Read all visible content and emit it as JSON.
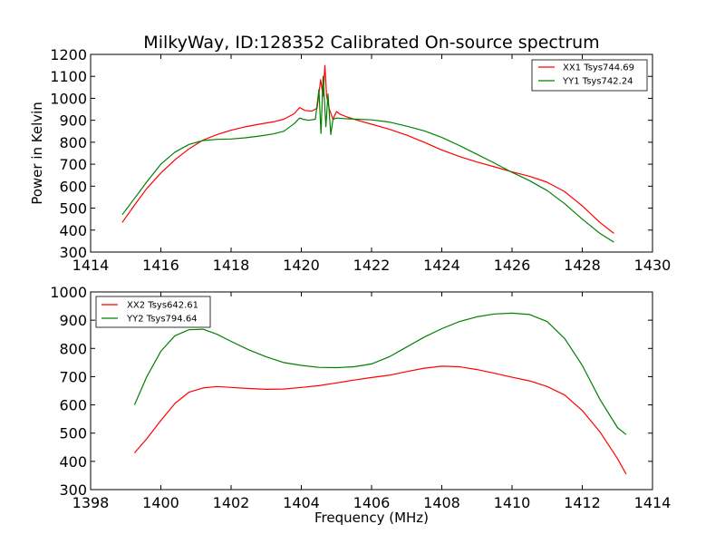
{
  "chart_data": [
    {
      "type": "line",
      "title": "MilkyWay, ID:128352 Calibrated On-source spectrum",
      "xlabel": "",
      "ylabel": "Power in Kelvin",
      "xlim": [
        1414,
        1430
      ],
      "ylim": [
        300,
        1200
      ],
      "xticks": [
        1414,
        1416,
        1418,
        1420,
        1422,
        1424,
        1426,
        1428,
        1430
      ],
      "yticks": [
        300,
        400,
        500,
        600,
        700,
        800,
        900,
        1000,
        1100,
        1200
      ],
      "grid": false,
      "legend_position": "top-right",
      "series": [
        {
          "name": "XX1 Tsys744.69",
          "color": "#ff0000",
          "x": [
            1414.9,
            1415.3,
            1415.6,
            1416.0,
            1416.4,
            1416.8,
            1417.2,
            1417.6,
            1418.0,
            1418.4,
            1418.8,
            1419.2,
            1419.5,
            1419.8,
            1419.95,
            1420.1,
            1420.3,
            1420.45,
            1420.55,
            1420.62,
            1420.67,
            1420.72,
            1420.8,
            1420.9,
            1421.0,
            1421.1,
            1421.3,
            1421.6,
            1422.0,
            1422.5,
            1423.0,
            1423.5,
            1424.0,
            1424.5,
            1425.0,
            1425.5,
            1426.0,
            1426.5,
            1427.0,
            1427.5,
            1428.0,
            1428.5,
            1428.9
          ],
          "y": [
            435,
            525,
            590,
            660,
            720,
            770,
            810,
            835,
            855,
            870,
            882,
            893,
            905,
            930,
            958,
            945,
            942,
            955,
            1085,
            1010,
            1150,
            1010,
            950,
            905,
            940,
            928,
            915,
            900,
            882,
            860,
            832,
            800,
            765,
            735,
            710,
            688,
            665,
            645,
            618,
            575,
            510,
            435,
            385
          ]
        },
        {
          "name": "YY1 Tsys742.24",
          "color": "#008000",
          "x": [
            1414.9,
            1415.3,
            1415.6,
            1416.0,
            1416.4,
            1416.8,
            1417.2,
            1417.6,
            1418.0,
            1418.4,
            1418.8,
            1419.2,
            1419.5,
            1419.8,
            1419.95,
            1420.05,
            1420.2,
            1420.4,
            1420.5,
            1420.56,
            1420.62,
            1420.7,
            1420.76,
            1420.84,
            1420.9,
            1421.0,
            1421.3,
            1421.6,
            1422.0,
            1422.5,
            1423.0,
            1423.5,
            1424.0,
            1424.5,
            1425.0,
            1425.5,
            1426.0,
            1426.5,
            1427.0,
            1427.5,
            1428.0,
            1428.5,
            1428.9
          ],
          "y": [
            470,
            555,
            620,
            700,
            755,
            790,
            808,
            813,
            815,
            820,
            828,
            838,
            850,
            885,
            910,
            905,
            900,
            905,
            1040,
            840,
            1100,
            870,
            1020,
            835,
            905,
            910,
            907,
            905,
            902,
            892,
            873,
            852,
            822,
            785,
            745,
            705,
            663,
            625,
            580,
            520,
            450,
            385,
            345
          ]
        }
      ]
    },
    {
      "type": "line",
      "title": "",
      "xlabel": "Frequency (MHz)",
      "ylabel": "",
      "xlim": [
        1398,
        1414
      ],
      "ylim": [
        300,
        1000
      ],
      "xticks": [
        1398,
        1400,
        1402,
        1404,
        1406,
        1408,
        1410,
        1412,
        1414
      ],
      "yticks": [
        300,
        400,
        500,
        600,
        700,
        800,
        900,
        1000
      ],
      "grid": false,
      "legend_position": "top-left",
      "series": [
        {
          "name": "XX2 Tsys642.61",
          "color": "#ff0000",
          "x": [
            1399.25,
            1399.6,
            1400.0,
            1400.4,
            1400.8,
            1401.2,
            1401.6,
            1402.0,
            1402.5,
            1403.0,
            1403.5,
            1404.0,
            1404.5,
            1405.0,
            1405.5,
            1406.0,
            1406.5,
            1407.0,
            1407.5,
            1408.0,
            1408.5,
            1409.0,
            1409.5,
            1410.0,
            1410.5,
            1411.0,
            1411.5,
            1412.0,
            1412.5,
            1413.0,
            1413.25
          ],
          "y": [
            430,
            480,
            545,
            605,
            645,
            660,
            665,
            662,
            658,
            655,
            656,
            662,
            668,
            678,
            688,
            697,
            705,
            718,
            730,
            737,
            735,
            725,
            712,
            698,
            685,
            665,
            635,
            580,
            505,
            410,
            355
          ]
        },
        {
          "name": "YY2 Tsys794.64",
          "color": "#008000",
          "x": [
            1399.25,
            1399.6,
            1400.0,
            1400.4,
            1400.8,
            1401.2,
            1401.6,
            1402.0,
            1402.5,
            1403.0,
            1403.5,
            1404.0,
            1404.5,
            1405.0,
            1405.5,
            1406.0,
            1406.5,
            1407.0,
            1407.5,
            1408.0,
            1408.5,
            1409.0,
            1409.5,
            1410.0,
            1410.5,
            1411.0,
            1411.5,
            1412.0,
            1412.5,
            1413.0,
            1413.25
          ],
          "y": [
            600,
            700,
            790,
            845,
            866,
            868,
            850,
            825,
            795,
            770,
            750,
            740,
            733,
            732,
            735,
            745,
            770,
            805,
            840,
            870,
            895,
            912,
            922,
            925,
            920,
            895,
            835,
            740,
            620,
            520,
            495
          ]
        }
      ]
    }
  ]
}
